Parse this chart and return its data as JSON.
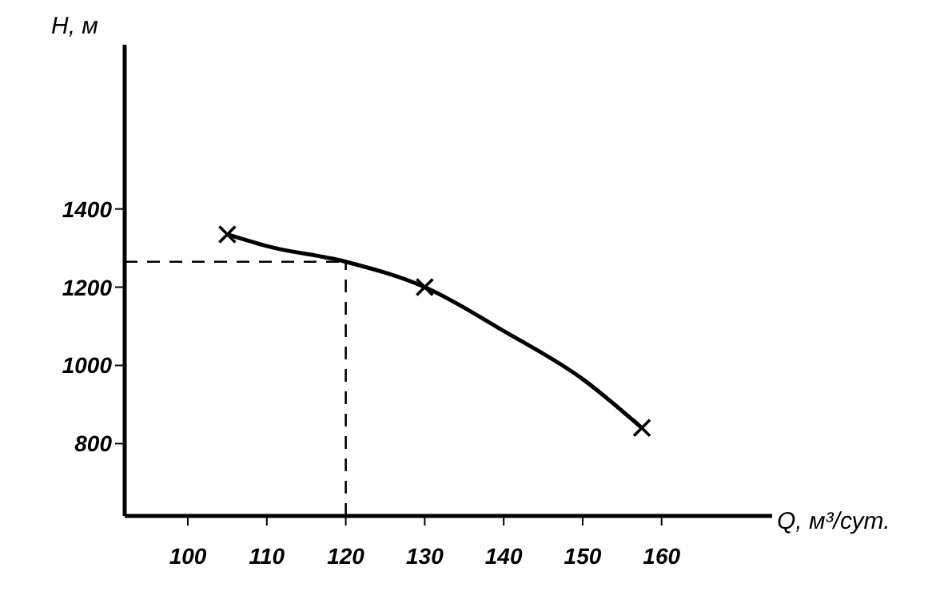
{
  "chart_data": {
    "type": "line",
    "xlabel": "Q, м³/сут.",
    "ylabel": "Н, м",
    "xlim": [
      92,
      174
    ],
    "xticks": [
      100,
      110,
      120,
      130,
      140,
      150,
      160
    ],
    "ylim": [
      615,
      1820
    ],
    "yticks": [
      800,
      1000,
      1200,
      1400
    ],
    "series": [
      {
        "color": "#000000",
        "marker": "none",
        "line_style": "solid",
        "x": [
          105,
          110,
          120,
          130,
          140,
          150,
          157.5
        ],
        "values": [
          1335,
          1305,
          1265,
          1200,
          1088,
          965,
          840
        ]
      },
      {
        "type": "scatter",
        "color": "#000000",
        "marker": "cross",
        "x": [
          105,
          130,
          157.5
        ],
        "values": [
          1335,
          1200,
          840
        ]
      }
    ],
    "ref_lines": [
      {
        "axis": "y",
        "value": 1265,
        "line_style": "dashed",
        "color": "#000000"
      },
      {
        "axis": "x",
        "value": 120,
        "line_style": "dashed",
        "color": "#000000"
      }
    ]
  }
}
